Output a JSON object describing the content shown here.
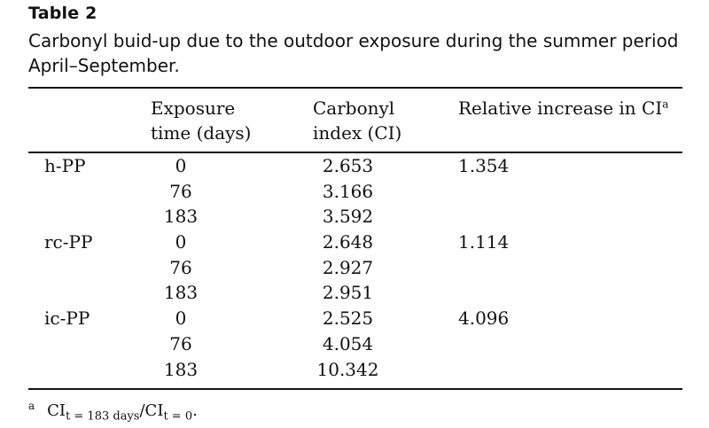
{
  "table": {
    "label": "Table 2",
    "caption_line1": "Carbonyl buid-up due to the outdoor exposure during the summer period",
    "caption_line2": "April–September.",
    "headers": {
      "exposure_line1": "Exposure",
      "exposure_line2": "time (days)",
      "carbonyl_line1": "Carbonyl",
      "carbonyl_line2": "index (CI)",
      "relative": "Relative increase in CI",
      "relative_footnote_mark": "a"
    },
    "rows": [
      {
        "material": "h-PP",
        "time": "0",
        "ci": "2.653",
        "relative": "1.354"
      },
      {
        "material": "",
        "time": "76",
        "ci": "3.166",
        "relative": ""
      },
      {
        "material": "",
        "time": "183",
        "ci": "3.592",
        "relative": ""
      },
      {
        "material": "rc-PP",
        "time": "0",
        "ci": "2.648",
        "relative": "1.114"
      },
      {
        "material": "",
        "time": "76",
        "ci": "2.927",
        "relative": ""
      },
      {
        "material": "",
        "time": "183",
        "ci": "2.951",
        "relative": ""
      },
      {
        "material": "ic-PP",
        "time": "0",
        "ci": "2.525",
        "relative": "4.096"
      },
      {
        "material": "",
        "time": "76",
        "ci": "4.054",
        "relative": ""
      },
      {
        "material": "",
        "time": "183",
        "ci": "10.342",
        "relative": ""
      }
    ],
    "footnote": {
      "mark": "a",
      "ci": "CI",
      "sub_numerator": "t = 183 days",
      "slash": "/",
      "sub_denominator": "t = 0",
      "end": "."
    }
  }
}
